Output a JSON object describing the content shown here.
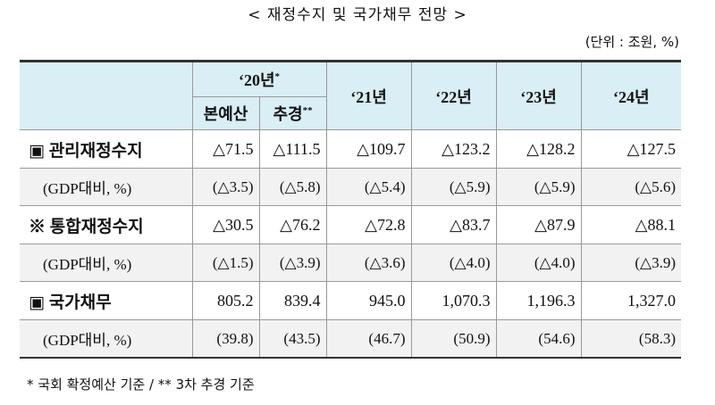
{
  "title": "< 재정수지 및 국가채무 전망 >",
  "unit": "(단위 : 조원, %)",
  "header": {
    "year20": "‘20년",
    "year20_mark": "*",
    "original": "본예산",
    "supplementary": "추경",
    "supplementary_mark": "**",
    "years": [
      "‘21년",
      "‘22년",
      "‘23년",
      "‘24년"
    ]
  },
  "rows": [
    {
      "label": "▣ 관리재정수지",
      "values": [
        "△71.5",
        "△111.5",
        "△109.7",
        "△123.2",
        "△128.2",
        "△127.5"
      ]
    },
    {
      "label": "(GDP대비, %)",
      "values": [
        "(△3.5)",
        "(△5.8)",
        "(△5.4)",
        "(△5.9)",
        "(△5.9)",
        "(△5.6)"
      ]
    },
    {
      "label": "※ 통합재정수지",
      "values": [
        "△30.5",
        "△76.2",
        "△72.8",
        "△83.7",
        "△87.9",
        "△88.1"
      ]
    },
    {
      "label": "(GDP대비, %)",
      "values": [
        "(△1.5)",
        "(△3.9)",
        "(△3.6)",
        "(△4.0)",
        "(△4.0)",
        "(△3.9)"
      ]
    },
    {
      "label": "▣ 국가채무",
      "values": [
        "805.2",
        "839.4",
        "945.0",
        "1,070.3",
        "1,196.3",
        "1,327.0"
      ]
    },
    {
      "label": "(GDP대비, %)",
      "values": [
        "(39.8)",
        "(43.5)",
        "(46.7)",
        "(50.9)",
        "(54.6)",
        "(58.3)"
      ]
    }
  ],
  "footnote": "* 국회 확정예산 기준 / ** 3차 추경 기준"
}
